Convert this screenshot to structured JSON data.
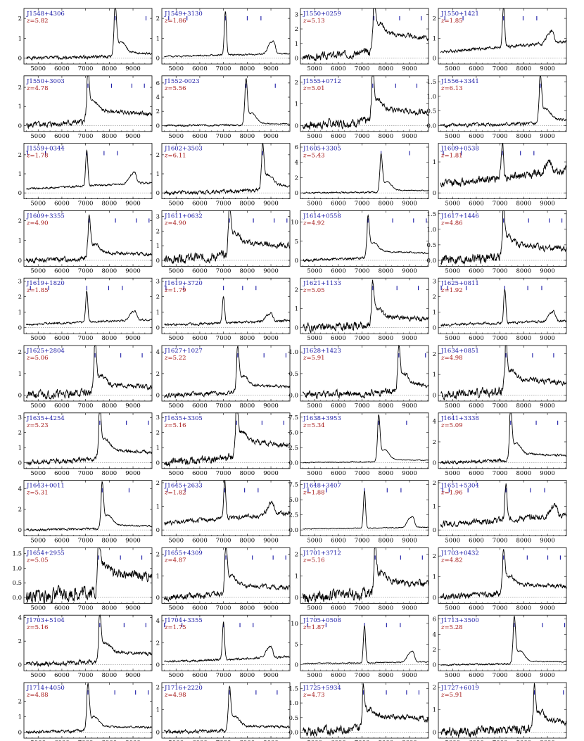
{
  "chart_data": {
    "type": "line",
    "layout": "11 rows x 4 columns of small-multiple spectra panels",
    "x_ticks": [
      5000,
      6000,
      7000,
      8000,
      9000
    ],
    "xlim": [
      4400,
      9800
    ],
    "colors": {
      "name": "#1a1aa6",
      "z": "#a61a1a",
      "ticks": "#1a1aa6",
      "line": "#000000",
      "zero": "#888888"
    },
    "panels": [
      {
        "name": "J1548+4306",
        "z": "5.82",
        "yticks": [
          0,
          1,
          2
        ],
        "ymax": 2.5,
        "peak": 8250,
        "peakAmp": 2.2,
        "base": 0.3,
        "noise": 0.08,
        "seed": 1
      },
      {
        "name": "J1549+3130",
        "z": "1.86",
        "yticks": [
          0,
          1,
          2
        ],
        "ymax": 2.5,
        "peak": 7080,
        "peakAmp": 2.2,
        "base": 0.25,
        "noise": 0.06,
        "seed": 2
      },
      {
        "name": "J1550+0259",
        "z": "5.13",
        "yticks": [
          0,
          1,
          2,
          3
        ],
        "ymax": 3.4,
        "peak": 7500,
        "peakAmp": 2.7,
        "base": 1.8,
        "noise": 0.25,
        "seed": 3
      },
      {
        "name": "J1550+1421",
        "z": "1.85",
        "yticks": [
          0,
          1,
          2
        ],
        "ymax": 2.5,
        "peak": 7150,
        "peakAmp": 2.1,
        "base": 0.9,
        "noise": 0.12,
        "seed": 4
      },
      {
        "name": "J1550+3003",
        "z": "4.78",
        "yticks": [
          0,
          1,
          2
        ],
        "ymax": 2.6,
        "peak": 7100,
        "peakAmp": 1.9,
        "base": 0.8,
        "noise": 0.15,
        "seed": 5
      },
      {
        "name": "J1552-0023",
        "z": "5.56",
        "yticks": [
          0,
          2,
          4,
          6
        ],
        "ymax": 7,
        "peak": 7950,
        "peakAmp": 5.8,
        "base": 0.3,
        "noise": 0.12,
        "seed": 6
      },
      {
        "name": "J1555+0712",
        "z": "5.01",
        "yticks": [
          0,
          1,
          2
        ],
        "ymax": 2.3,
        "peak": 7450,
        "peakAmp": 1.7,
        "base": 0.8,
        "noise": 0.2,
        "seed": 7
      },
      {
        "name": "J1556+3341",
        "z": "6.13",
        "yticks": [
          0.0,
          0.5,
          1.0,
          1.5
        ],
        "ymax": 1.7,
        "peak": 8700,
        "peakAmp": 1.35,
        "base": 0.25,
        "noise": 0.06,
        "seed": 8
      },
      {
        "name": "J1559+0344",
        "z": "1.78",
        "yticks": [
          0,
          1,
          2
        ],
        "ymax": 2.6,
        "peak": 7050,
        "peakAmp": 1.9,
        "base": 0.6,
        "noise": 0.08,
        "seed": 9
      },
      {
        "name": "J1602+3503",
        "z": "6.11",
        "yticks": [
          0,
          1,
          2
        ],
        "ymax": 2.6,
        "peak": 8650,
        "peakAmp": 1.9,
        "base": 0.5,
        "noise": 0.1,
        "seed": 10
      },
      {
        "name": "J1605+3305",
        "z": "5.43",
        "yticks": [
          0,
          2,
          4,
          6
        ],
        "ymax": 6.5,
        "peak": 7800,
        "peakAmp": 4.3,
        "base": 0.4,
        "noise": 0.1,
        "seed": 11
      },
      {
        "name": "J1609+0538",
        "z": "1.81",
        "yticks": [
          0,
          1
        ],
        "ymax": 1.6,
        "peak": 7100,
        "peakAmp": 1.2,
        "base": 0.8,
        "noise": 0.2,
        "seed": 12
      },
      {
        "name": "J1609+3355",
        "z": "4.90",
        "yticks": [
          0,
          1,
          2
        ],
        "ymax": 2.5,
        "peak": 7150,
        "peakAmp": 1.7,
        "base": 0.4,
        "noise": 0.12,
        "seed": 13
      },
      {
        "name": "J1611+0632",
        "z": "4.90",
        "yticks": [
          0,
          1,
          2,
          3
        ],
        "ymax": 3.4,
        "peak": 7250,
        "peakAmp": 2.6,
        "base": 1.3,
        "noise": 0.3,
        "seed": 14
      },
      {
        "name": "J1614+0558",
        "z": "4.92",
        "yticks": [
          0,
          5,
          10
        ],
        "ymax": 13,
        "peak": 7250,
        "peakAmp": 8.5,
        "base": 2.5,
        "noise": 0.3,
        "seed": 15
      },
      {
        "name": "J1617+1446",
        "z": "4.86",
        "yticks": [
          0.0,
          0.5,
          1.0,
          1.5
        ],
        "ymax": 1.6,
        "peak": 7150,
        "peakAmp": 1.1,
        "base": 0.5,
        "noise": 0.15,
        "seed": 16
      },
      {
        "name": "J1619+1820",
        "z": "1.85",
        "yticks": [
          0,
          1,
          2,
          3
        ],
        "ymax": 3.2,
        "peak": 7050,
        "peakAmp": 2.0,
        "base": 0.6,
        "noise": 0.1,
        "seed": 17
      },
      {
        "name": "J1619+3720",
        "z": "1.79",
        "yticks": [
          0,
          1,
          2,
          3
        ],
        "ymax": 3.2,
        "peak": 7000,
        "peakAmp": 1.8,
        "base": 0.5,
        "noise": 0.12,
        "seed": 18
      },
      {
        "name": "J1621+1133",
        "z": "5.05",
        "yticks": [
          0,
          1,
          2
        ],
        "ymax": 2.6,
        "peak": 7450,
        "peakAmp": 1.6,
        "base": 0.6,
        "noise": 0.2,
        "seed": 19
      },
      {
        "name": "J1625+0811",
        "z": "1.92",
        "yticks": [
          0,
          1,
          2,
          3
        ],
        "ymax": 3.2,
        "peak": 7200,
        "peakAmp": 2.2,
        "base": 0.5,
        "noise": 0.12,
        "seed": 20
      },
      {
        "name": "J1625+2804",
        "z": "5.06",
        "yticks": [
          0,
          1,
          2
        ],
        "ymax": 2.3,
        "peak": 7400,
        "peakAmp": 1.8,
        "base": 0.5,
        "noise": 0.18,
        "seed": 21
      },
      {
        "name": "J1627+1027",
        "z": "5.22",
        "yticks": [
          0,
          2,
          4
        ],
        "ymax": 4.6,
        "peak": 7600,
        "peakAmp": 3.2,
        "base": 1.0,
        "noise": 0.2,
        "seed": 22
      },
      {
        "name": "J1628+1423",
        "z": "5.91",
        "yticks": [
          0.0,
          0.5,
          1.0
        ],
        "ymax": 1.15,
        "peak": 8550,
        "peakAmp": 0.8,
        "base": 0.3,
        "noise": 0.08,
        "seed": 23
      },
      {
        "name": "J1634+0851",
        "z": "4.98",
        "yticks": [
          0,
          1,
          2
        ],
        "ymax": 2.4,
        "peak": 7250,
        "peakAmp": 1.6,
        "base": 0.8,
        "noise": 0.2,
        "seed": 24
      },
      {
        "name": "J1635+4254",
        "z": "5.23",
        "yticks": [
          0,
          1,
          2,
          3
        ],
        "ymax": 3.3,
        "peak": 7600,
        "peakAmp": 2.6,
        "base": 0.9,
        "noise": 0.15,
        "seed": 25
      },
      {
        "name": "J1635+3305",
        "z": "5.16",
        "yticks": [
          0,
          1,
          2,
          3
        ],
        "ymax": 3.3,
        "peak": 7550,
        "peakAmp": 2.6,
        "base": 1.5,
        "noise": 0.25,
        "seed": 26
      },
      {
        "name": "J1638+3953",
        "z": "5.34",
        "yticks": [
          0.0,
          2.5,
          5.0,
          7.5
        ],
        "ymax": 8.2,
        "peak": 7700,
        "peakAmp": 6.7,
        "base": 0.5,
        "noise": 0.08,
        "seed": 27
      },
      {
        "name": "J1641+3338",
        "z": "5.09",
        "yticks": [
          0,
          2,
          4
        ],
        "ymax": 4.8,
        "peak": 7450,
        "peakAmp": 4.0,
        "base": 0.9,
        "noise": 0.15,
        "seed": 28
      },
      {
        "name": "J1643+0011",
        "z": "5.31",
        "yticks": [
          0,
          2,
          4
        ],
        "ymax": 4.8,
        "peak": 7700,
        "peakAmp": 3.8,
        "base": 0.5,
        "noise": 0.1,
        "seed": 29
      },
      {
        "name": "J1645+2633",
        "z": "1.82",
        "yticks": [
          0,
          1,
          2
        ],
        "ymax": 2.1,
        "peak": 7050,
        "peakAmp": 1.6,
        "base": 0.8,
        "noise": 0.15,
        "seed": 30
      },
      {
        "name": "J1648+3407",
        "z": "1.88",
        "yticks": [
          0.0,
          2.5,
          5.0,
          7.5
        ],
        "ymax": 8.2,
        "peak": 7100,
        "peakAmp": 6.2,
        "base": 0.5,
        "noise": 0.1,
        "seed": 31
      },
      {
        "name": "J1651+5304",
        "z": "1.96",
        "yticks": [
          0,
          1,
          2
        ],
        "ymax": 2.1,
        "peak": 7250,
        "peakAmp": 1.5,
        "base": 0.7,
        "noise": 0.2,
        "seed": 32
      },
      {
        "name": "J1654+2955",
        "z": "5.05",
        "yticks": [
          0.0,
          0.5,
          1.0,
          1.5
        ],
        "ymax": 1.7,
        "peak": 7550,
        "peakAmp": 1.2,
        "base": 0.9,
        "noise": 0.25,
        "seed": 33
      },
      {
        "name": "J1655+4309",
        "z": "4.87",
        "yticks": [
          0,
          1,
          2
        ],
        "ymax": 2.3,
        "peak": 7100,
        "peakAmp": 1.7,
        "base": 0.6,
        "noise": 0.15,
        "seed": 34
      },
      {
        "name": "J1701+3712",
        "z": "5.16",
        "yticks": [
          0,
          1,
          2
        ],
        "ymax": 2.3,
        "peak": 7550,
        "peakAmp": 1.6,
        "base": 0.8,
        "noise": 0.25,
        "seed": 35
      },
      {
        "name": "J1703+0432",
        "z": "4.82",
        "yticks": [
          0,
          1,
          2
        ],
        "ymax": 2.4,
        "peak": 7150,
        "peakAmp": 1.5,
        "base": 0.7,
        "noise": 0.15,
        "seed": 36
      },
      {
        "name": "J1703+5104",
        "z": "5.16",
        "yticks": [
          0,
          2,
          4
        ],
        "ymax": 4.2,
        "peak": 7600,
        "peakAmp": 2.8,
        "base": 1.2,
        "noise": 0.2,
        "seed": 37
      },
      {
        "name": "J1704+3355",
        "z": "1.75",
        "yticks": [
          0,
          2,
          4
        ],
        "ymax": 4.5,
        "peak": 7000,
        "peakAmp": 3.4,
        "base": 0.8,
        "noise": 0.15,
        "seed": 38
      },
      {
        "name": "J1705+0508",
        "z": "1.87",
        "yticks": [
          0,
          5,
          10
        ],
        "ymax": 12,
        "peak": 7100,
        "peakAmp": 9.0,
        "base": 0.8,
        "noise": 0.2,
        "seed": 39
      },
      {
        "name": "J1713+3500",
        "z": "5.28",
        "yticks": [
          0,
          2,
          4,
          6
        ],
        "ymax": 6.5,
        "peak": 7600,
        "peakAmp": 5.3,
        "base": 0.5,
        "noise": 0.1,
        "seed": 40
      },
      {
        "name": "J1714+4050",
        "z": "4.88",
        "yticks": [
          0,
          1,
          2
        ],
        "ymax": 3.2,
        "peak": 7100,
        "peakAmp": 2.5,
        "base": 0.4,
        "noise": 0.1,
        "seed": 41
      },
      {
        "name": "J1716+2220",
        "z": "4.98",
        "yticks": [
          0,
          1,
          2
        ],
        "ymax": 2.2,
        "peak": 7250,
        "peakAmp": 1.6,
        "base": 0.3,
        "noise": 0.08,
        "seed": 42
      },
      {
        "name": "J1725+5934",
        "z": "4.73",
        "yticks": [
          0.0,
          0.5,
          1.0,
          1.5
        ],
        "ymax": 1.7,
        "peak": 7050,
        "peakAmp": 0.9,
        "base": 0.6,
        "noise": 0.15,
        "seed": 43
      },
      {
        "name": "J1727+6019",
        "z": "5.91",
        "yticks": [
          0,
          1,
          2
        ],
        "ymax": 2.2,
        "peak": 8450,
        "peakAmp": 1.3,
        "base": 0.6,
        "noise": 0.2,
        "seed": 44
      }
    ]
  }
}
